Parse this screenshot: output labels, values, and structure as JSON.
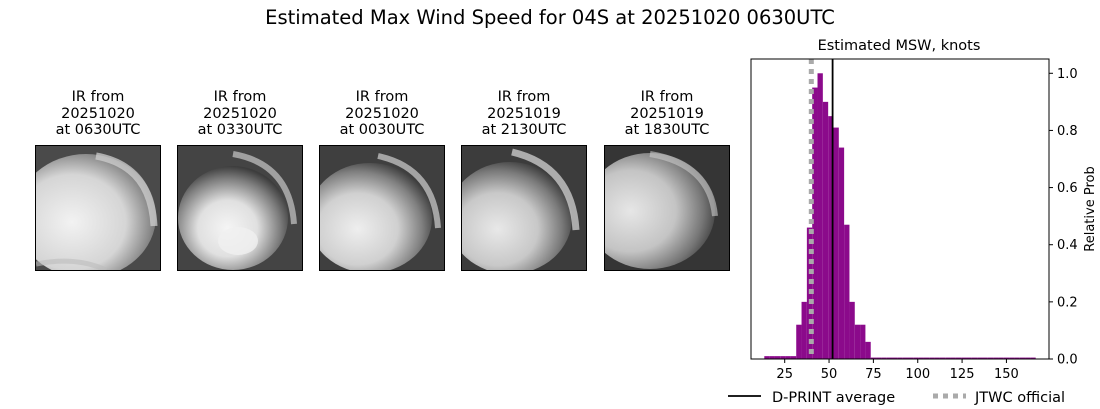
{
  "figure": {
    "title": "Estimated Max Wind Speed for 04S at 20251020 0630UTC"
  },
  "ir_panels": [
    {
      "lines": [
        "IR from",
        "20251020",
        "at 0630UTC"
      ]
    },
    {
      "lines": [
        "IR from",
        "20251020",
        "at 0330UTC"
      ]
    },
    {
      "lines": [
        "IR from",
        "20251020",
        "at 0030UTC"
      ]
    },
    {
      "lines": [
        "IR from",
        "20251019",
        "at 2130UTC"
      ]
    },
    {
      "lines": [
        "IR from",
        "20251019",
        "at 1830UTC"
      ]
    }
  ],
  "chart_data": {
    "type": "bar",
    "title": "Estimated MSW, knots",
    "xlabel": "",
    "ylabel": "Relative Prob",
    "xlim": [
      6,
      174
    ],
    "ylim": [
      0,
      1.05
    ],
    "x_ticks": [
      25,
      50,
      75,
      100,
      125,
      150
    ],
    "y_ticks": [
      0.0,
      0.2,
      0.4,
      0.6,
      0.8,
      1.0
    ],
    "y_tick_labels": [
      "0.0",
      "0.2",
      "0.4",
      "0.6",
      "0.8",
      "1.0"
    ],
    "y_axis_position": "right",
    "bin_width": 3,
    "bar_color": "#8b0a8b",
    "bins": [
      {
        "x": 15,
        "y": 0.01
      },
      {
        "x": 18,
        "y": 0.01
      },
      {
        "x": 21,
        "y": 0.01
      },
      {
        "x": 24,
        "y": 0.01
      },
      {
        "x": 27,
        "y": 0.01
      },
      {
        "x": 30,
        "y": 0.01
      },
      {
        "x": 33,
        "y": 0.12
      },
      {
        "x": 36,
        "y": 0.2
      },
      {
        "x": 39,
        "y": 0.46
      },
      {
        "x": 42,
        "y": 0.95
      },
      {
        "x": 45,
        "y": 1.0
      },
      {
        "x": 48,
        "y": 0.9
      },
      {
        "x": 51,
        "y": 0.85
      },
      {
        "x": 54,
        "y": 0.81
      },
      {
        "x": 57,
        "y": 0.74
      },
      {
        "x": 60,
        "y": 0.47
      },
      {
        "x": 63,
        "y": 0.2
      },
      {
        "x": 66,
        "y": 0.12
      },
      {
        "x": 69,
        "y": 0.12
      },
      {
        "x": 72,
        "y": 0.06
      },
      {
        "x": 75,
        "y": 0.005
      },
      {
        "x": 78,
        "y": 0.005
      },
      {
        "x": 81,
        "y": 0.005
      },
      {
        "x": 84,
        "y": 0.005
      },
      {
        "x": 87,
        "y": 0.005
      },
      {
        "x": 90,
        "y": 0.005
      },
      {
        "x": 93,
        "y": 0.005
      },
      {
        "x": 96,
        "y": 0.005
      },
      {
        "x": 99,
        "y": 0.005
      },
      {
        "x": 102,
        "y": 0.005
      },
      {
        "x": 105,
        "y": 0.005
      },
      {
        "x": 108,
        "y": 0.005
      },
      {
        "x": 111,
        "y": 0.005
      },
      {
        "x": 114,
        "y": 0.005
      },
      {
        "x": 117,
        "y": 0.005
      },
      {
        "x": 120,
        "y": 0.005
      },
      {
        "x": 123,
        "y": 0.005
      },
      {
        "x": 126,
        "y": 0.005
      },
      {
        "x": 129,
        "y": 0.005
      },
      {
        "x": 132,
        "y": 0.005
      },
      {
        "x": 135,
        "y": 0.005
      },
      {
        "x": 138,
        "y": 0.005
      },
      {
        "x": 141,
        "y": 0.005
      },
      {
        "x": 144,
        "y": 0.005
      },
      {
        "x": 147,
        "y": 0.005
      },
      {
        "x": 150,
        "y": 0.005
      },
      {
        "x": 153,
        "y": 0.005
      },
      {
        "x": 156,
        "y": 0.005
      },
      {
        "x": 159,
        "y": 0.005
      },
      {
        "x": 162,
        "y": 0.005
      },
      {
        "x": 165,
        "y": 0.005
      }
    ],
    "reference_lines": [
      {
        "name": "D-PRINT average",
        "x": 52,
        "color": "#000000",
        "style": "solid"
      },
      {
        "name": "JTWC official",
        "x": 40,
        "color": "#aaaaaa",
        "style": "dotted"
      }
    ],
    "legend": {
      "placement": "bottom",
      "entries": [
        "D-PRINT average",
        "JTWC official"
      ]
    }
  }
}
